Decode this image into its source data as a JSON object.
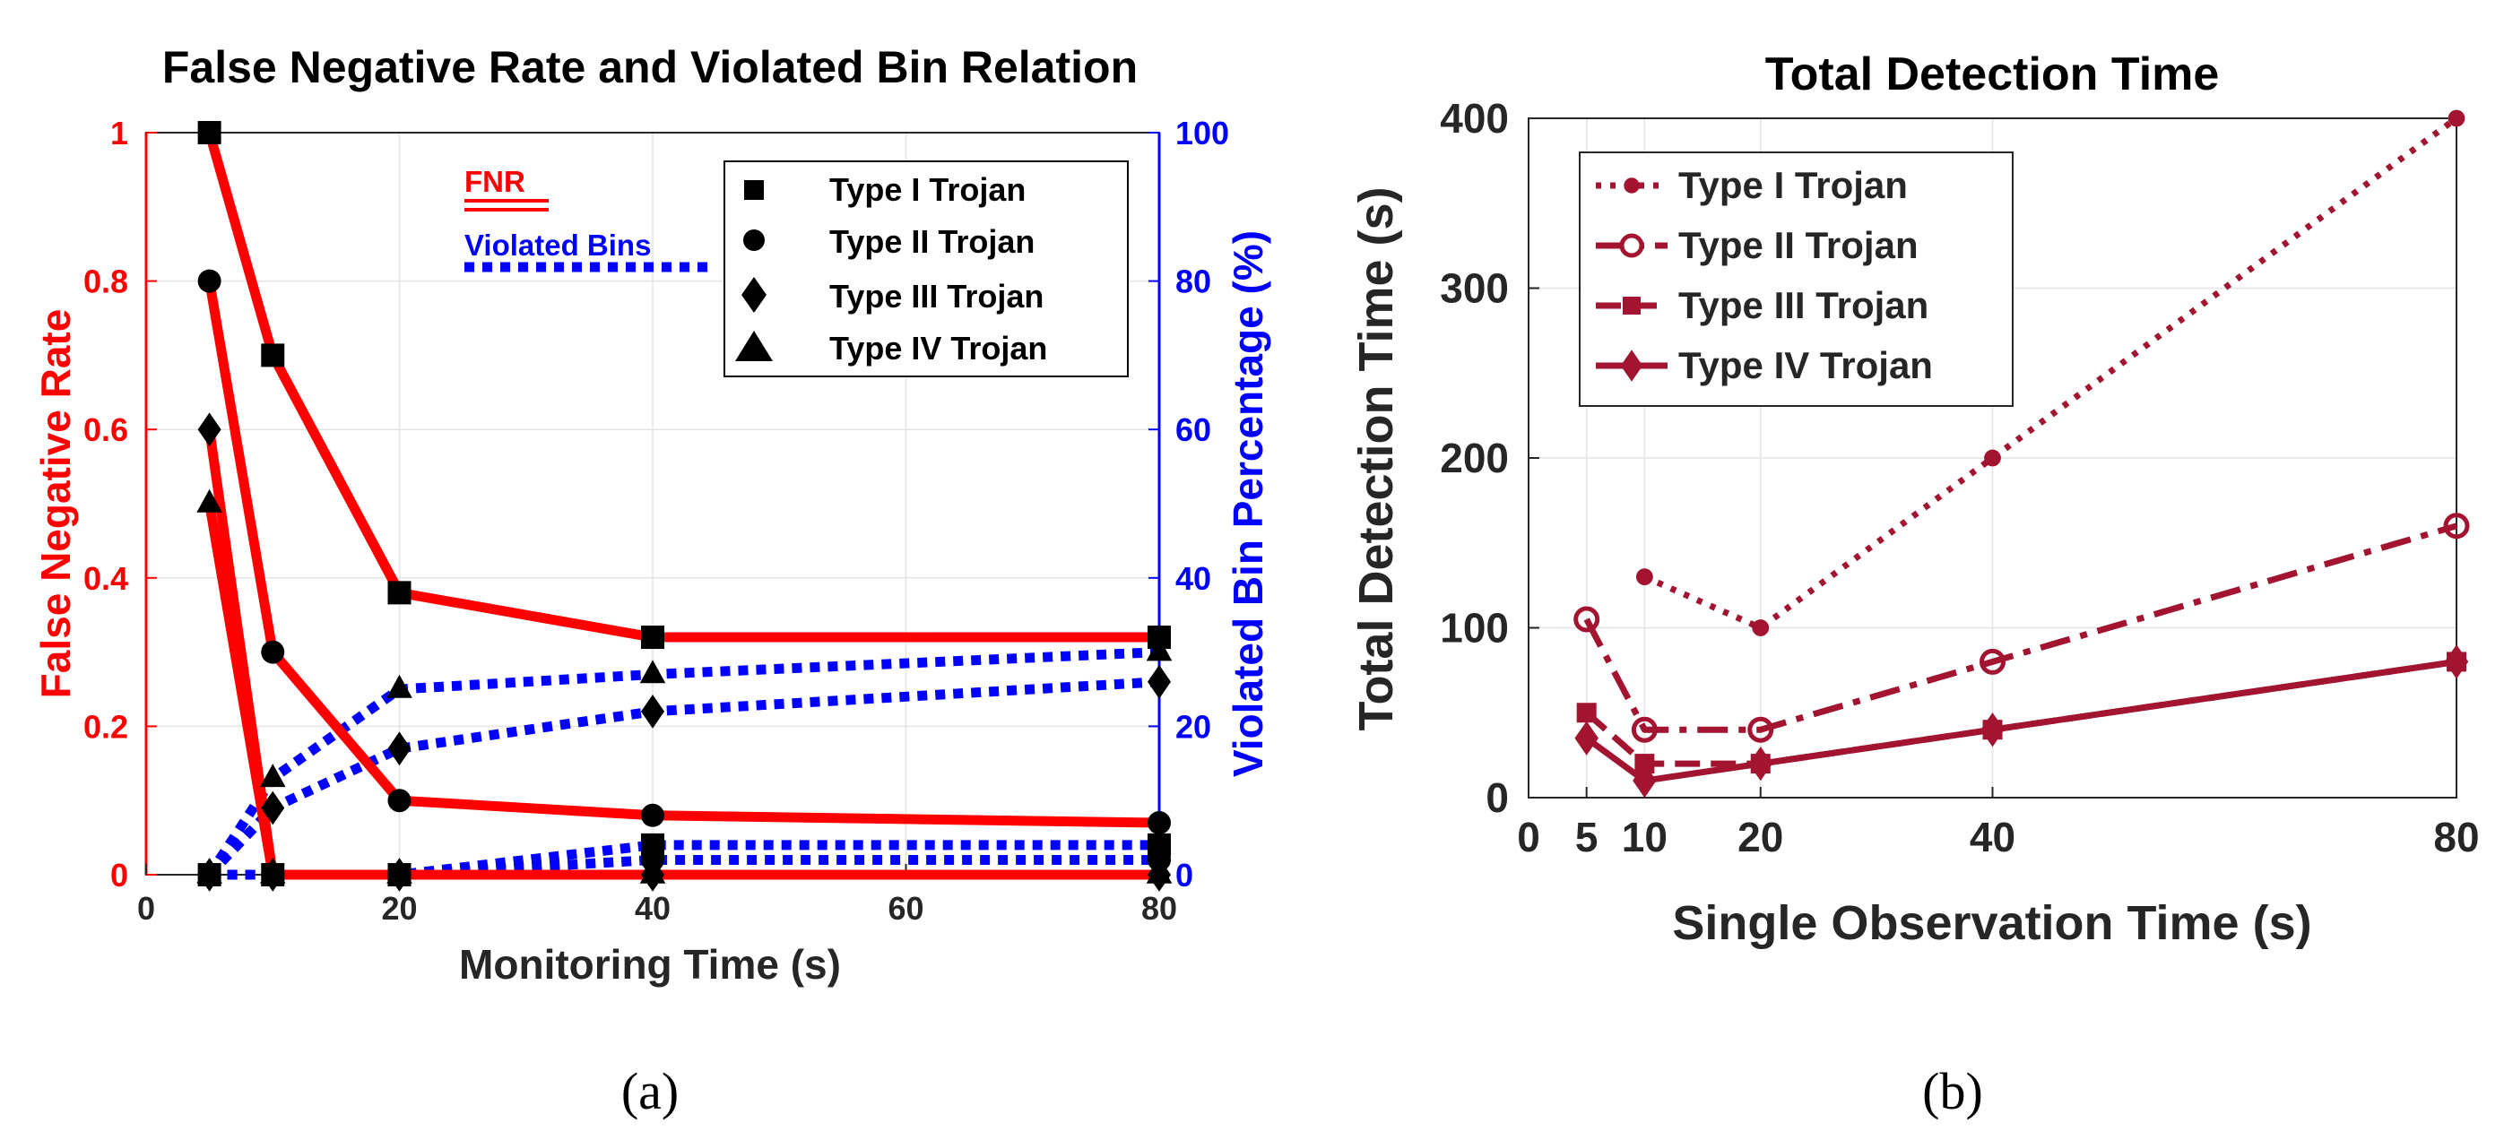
{
  "captions": {
    "a": "(a)",
    "b": "(b)"
  },
  "colors": {
    "red": "#ff0000",
    "blue": "#0000ff",
    "black": "#000000",
    "maroon": "#a2142f",
    "grid": "#e4e4e4",
    "axis": "#262626"
  },
  "chart_data": [
    {
      "type": "line",
      "title": "False Negative Rate and Violated Bin Relation",
      "xlabel": "Monitoring Time (s)",
      "ylabel": "False Negative Rate",
      "y2label": "Violated Bin Percentage (%)",
      "xlim": [
        0,
        80
      ],
      "ylim": [
        0,
        1
      ],
      "y2lim": [
        0,
        100
      ],
      "xticks": [
        0,
        20,
        40,
        60,
        80
      ],
      "yticks": [
        0,
        0.2,
        0.4,
        0.6,
        0.8,
        1
      ],
      "ytick_labels": [
        "0",
        "0.2",
        "0.4",
        "0.6",
        "0.8",
        "1"
      ],
      "y2ticks": [
        0,
        20,
        40,
        60,
        80,
        100
      ],
      "grid": true,
      "legend_position": "top-right",
      "legend": [
        {
          "name": "Type I Trojan",
          "marker": "square"
        },
        {
          "name": "Type II Trojan",
          "marker": "circle"
        },
        {
          "name": "Type III Trojan",
          "marker": "diamond"
        },
        {
          "name": "Type IV Trojan",
          "marker": "triangle"
        }
      ],
      "style_legend": [
        {
          "name": "FNR",
          "color": "#ff0000",
          "style": "solid"
        },
        {
          "name": "Violated Bins",
          "color": "#0000ff",
          "style": "dotted"
        }
      ],
      "x": [
        5,
        10,
        20,
        40,
        80
      ],
      "fnr_series": [
        {
          "name": "Type I Trojan",
          "marker": "square",
          "values": [
            1.0,
            0.7,
            0.38,
            0.32,
            0.32
          ]
        },
        {
          "name": "Type II Trojan",
          "marker": "circle",
          "values": [
            0.8,
            0.3,
            0.1,
            0.08,
            0.07
          ]
        },
        {
          "name": "Type III Trojan",
          "marker": "diamond",
          "values": [
            0.6,
            0.0,
            0.0,
            0.0,
            0.0
          ]
        },
        {
          "name": "Type IV Trojan",
          "marker": "triangle",
          "values": [
            0.5,
            0.0,
            0.0,
            0.0,
            0.0
          ]
        }
      ],
      "violated_bin_series": [
        {
          "name": "Type IV Trojan",
          "values": [
            0,
            13,
            25,
            27,
            30
          ]
        },
        {
          "name": "Type III Trojan",
          "values": [
            0,
            9,
            17,
            22,
            26
          ]
        },
        {
          "name": "Type I Trojan",
          "values": [
            0,
            0,
            0,
            4,
            4
          ]
        },
        {
          "name": "Type II Trojan",
          "values": [
            0,
            0,
            0,
            2,
            2
          ]
        }
      ]
    },
    {
      "type": "line",
      "title": "Total Detection Time",
      "xlabel": "Single Observation Time (s)",
      "ylabel": "Total Detection Time (s)",
      "xlim": [
        0,
        80
      ],
      "ylim": [
        0,
        400
      ],
      "xticks": [
        0,
        5,
        10,
        20,
        40,
        80
      ],
      "yticks": [
        0,
        100,
        200,
        300,
        400
      ],
      "grid": true,
      "legend_position": "top-left",
      "series": [
        {
          "name": "Type I Trojan",
          "style": "dotted",
          "marker": "dot",
          "x": [
            10,
            20,
            40,
            80
          ],
          "values": [
            130,
            100,
            200,
            400
          ]
        },
        {
          "name": "Type II Trojan",
          "style": "dashdot",
          "marker": "circle",
          "x": [
            5,
            10,
            20,
            40,
            80
          ],
          "values": [
            105,
            40,
            40,
            80,
            160
          ]
        },
        {
          "name": "Type III Trojan",
          "style": "dashed",
          "marker": "square",
          "x": [
            5,
            10,
            20,
            40,
            80
          ],
          "values": [
            50,
            20,
            20,
            40,
            80
          ]
        },
        {
          "name": "Type IV Trojan",
          "style": "solid",
          "marker": "diamond",
          "x": [
            5,
            10,
            20,
            40,
            80
          ],
          "values": [
            35,
            10,
            20,
            40,
            80
          ]
        }
      ]
    }
  ]
}
